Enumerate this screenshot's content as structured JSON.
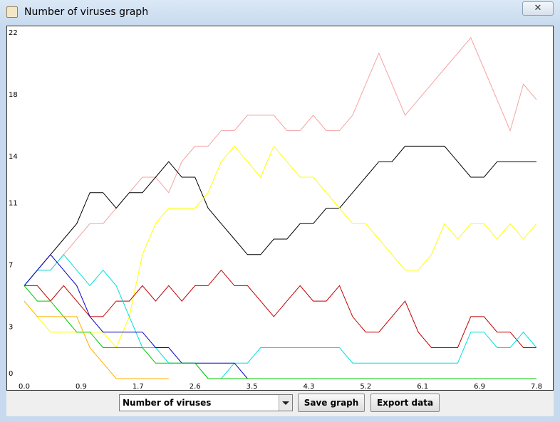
{
  "window": {
    "title": "Number of viruses graph"
  },
  "controls": {
    "select": "Number of viruses",
    "save_button": "Save graph",
    "export_button": "Export data"
  },
  "chart_data": {
    "type": "line",
    "x": [
      0,
      0.2,
      0.4,
      0.6,
      0.8,
      1.0,
      1.2,
      1.4,
      1.6,
      1.8,
      2.0,
      2.2,
      2.4,
      2.6,
      2.8,
      3.0,
      3.2,
      3.4,
      3.6,
      3.8,
      4.0,
      4.2,
      4.4,
      4.6,
      4.8,
      5.0,
      5.2,
      5.4,
      5.6,
      5.8,
      6.0,
      6.2,
      6.4,
      6.6,
      6.8,
      7.0,
      7.2,
      7.4,
      7.6,
      7.8
    ],
    "xlim": [
      0,
      7.8
    ],
    "xticks": [
      {
        "value": 0,
        "label": "0.0"
      },
      {
        "value": 0.8667,
        "label": "0.9"
      },
      {
        "value": 1.7333,
        "label": "1.7"
      },
      2.6,
      {
        "value": 3.4667,
        "label": "3.5"
      },
      {
        "value": 4.3333,
        "label": "4.3"
      },
      5.2,
      {
        "value": 6.0667,
        "label": "6.1"
      },
      {
        "value": 6.9333,
        "label": "6.9"
      },
      7.8
    ],
    "ylim": [
      0,
      22
    ],
    "yticks": [
      0,
      3,
      7,
      11,
      14,
      18,
      22
    ],
    "series": [
      {
        "color": "#f4a3a3",
        "values": [
          6,
          7,
          7,
          8,
          9,
          10,
          10,
          11,
          12,
          13,
          13,
          12,
          14,
          15,
          15,
          16,
          16,
          17,
          17,
          17,
          16,
          16,
          17,
          16,
          16,
          17,
          19,
          21,
          19,
          17,
          18,
          19,
          20,
          21,
          22,
          20,
          18,
          16,
          19,
          18
        ]
      },
      {
        "color": "#000000",
        "values": [
          6,
          7,
          8,
          9,
          10,
          12,
          12,
          11,
          12,
          12,
          13,
          14,
          13,
          13,
          11,
          10,
          9,
          8,
          8,
          9,
          9,
          10,
          10,
          11,
          11,
          12,
          13,
          14,
          14,
          15,
          15,
          15,
          15,
          14,
          13,
          13,
          14,
          14,
          14,
          14
        ]
      },
      {
        "color": "#ffff00",
        "values": [
          5,
          4,
          3,
          3,
          3,
          3,
          3,
          2,
          4,
          8,
          10,
          11,
          11,
          11,
          12,
          14,
          15,
          14,
          13,
          15,
          14,
          13,
          13,
          12,
          11,
          10,
          10,
          9,
          8,
          7,
          7,
          8,
          10,
          9,
          10,
          10,
          9,
          10,
          9,
          10
        ]
      },
      {
        "color": "#c00000",
        "values": [
          6,
          6,
          5,
          6,
          5,
          4,
          4,
          5,
          5,
          6,
          5,
          6,
          5,
          6,
          6,
          7,
          6,
          6,
          5,
          4,
          5,
          6,
          5,
          5,
          6,
          4,
          3,
          3,
          4,
          5,
          3,
          2,
          2,
          2,
          4,
          4,
          3,
          3,
          2,
          2
        ]
      },
      {
        "color": "#00dede",
        "values": [
          6,
          7,
          7,
          8,
          7,
          6,
          7,
          6,
          4,
          2,
          2,
          1,
          1,
          1,
          0,
          0,
          1,
          1,
          2,
          2,
          2,
          2,
          2,
          2,
          2,
          1,
          1,
          1,
          1,
          1,
          1,
          1,
          1,
          1,
          3,
          3,
          2,
          2,
          3,
          2
        ]
      },
      {
        "color": "#0000c0",
        "values": [
          6,
          7,
          8,
          7,
          6,
          4,
          3,
          3,
          3,
          3,
          2,
          2,
          1,
          1,
          1,
          1,
          1,
          0,
          null,
          null,
          null,
          null,
          null,
          null,
          null,
          null,
          null,
          null,
          null,
          null,
          null,
          null,
          null,
          null,
          null,
          null,
          null,
          null,
          null,
          null
        ]
      },
      {
        "color": "#00c800",
        "values": [
          6,
          5,
          5,
          4,
          3,
          3,
          2,
          2,
          2,
          2,
          1,
          1,
          1,
          1,
          0,
          0,
          0,
          0,
          0,
          0,
          0,
          0,
          0,
          0,
          0,
          0,
          0,
          0,
          0,
          0,
          0,
          0,
          0,
          0,
          0,
          0,
          0,
          0,
          0,
          0
        ]
      },
      {
        "color": "#ffb000",
        "values": [
          5,
          4,
          4,
          4,
          4,
          2,
          1,
          0,
          0,
          0,
          0,
          0,
          null,
          null,
          null,
          null,
          null,
          null,
          null,
          null,
          null,
          null,
          null,
          null,
          null,
          null,
          null,
          null,
          null,
          null,
          null,
          null,
          null,
          null,
          null,
          null,
          null,
          null,
          null,
          null
        ]
      }
    ]
  }
}
